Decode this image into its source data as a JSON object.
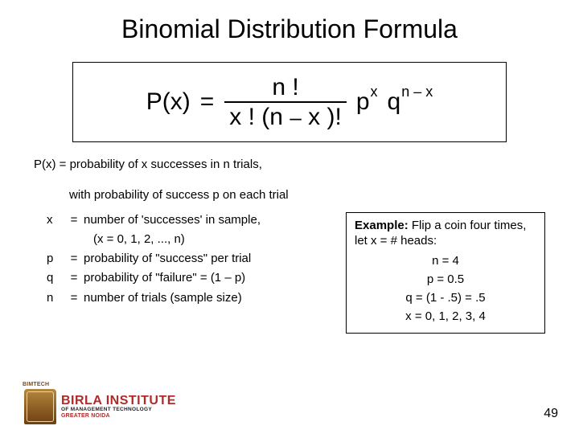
{
  "title": "Binomial Distribution Formula",
  "formula": {
    "lhs": "P(x)",
    "eq": "=",
    "num": "n !",
    "den_a": "x !",
    "den_b": "(n",
    "den_dash": "–",
    "den_c": "x )!",
    "p": "p",
    "p_exp": "x",
    "q": "q",
    "q_exp_a": "n",
    "q_exp_dash": "–",
    "q_exp_b": "x"
  },
  "desc1": "P(x) = probability of x successes in n trials,",
  "desc2": "with probability of success p on each trial",
  "defs": {
    "x": {
      "v": "x",
      "e": "=",
      "t1": "number of 'successes' in sample,",
      "t2": "(x = 0, 1, 2, ..., n)"
    },
    "p": {
      "v": "p",
      "e": "=",
      "t": "probability of \"success\" per trial"
    },
    "q": {
      "v": "q",
      "e": "=",
      "t": "probability of \"failure\" = (1 – p)"
    },
    "n": {
      "v": "n",
      "e": "=",
      "t": "number of trials (sample size)"
    }
  },
  "example": {
    "label": "Example:",
    "text": "  Flip a coin four times, let  x = # heads:",
    "n": "n = 4",
    "p": "p = 0.5",
    "q": "q = (1 - .5) = .5",
    "x": "x = 0, 1, 2, 3, 4"
  },
  "logo": {
    "l1": "BIRLA INSTITUTE",
    "l2": "OF MANAGEMENT TECHNOLOGY",
    "l3": "GREATER NOIDA"
  },
  "pagenum": "49"
}
